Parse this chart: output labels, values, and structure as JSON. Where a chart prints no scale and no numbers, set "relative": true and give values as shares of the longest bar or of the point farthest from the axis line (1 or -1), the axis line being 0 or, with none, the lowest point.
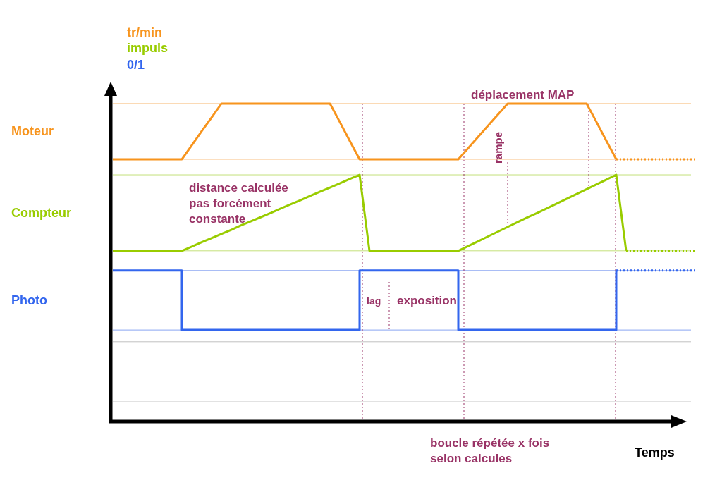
{
  "chart_data": {
    "type": "line",
    "relative": true,
    "xlabel": "Temps",
    "categories": [
      null,
      null,
      null,
      null,
      null,
      null,
      null,
      null,
      null,
      null,
      null,
      null,
      null,
      null,
      null,
      null,
      null,
      null,
      null,
      null,
      null,
      null,
      null,
      null,
      null,
      null,
      null,
      null,
      null,
      null,
      null,
      null,
      null,
      null,
      null,
      null,
      null,
      null,
      null,
      null,
      null,
      null,
      null,
      null,
      null,
      null,
      null,
      null,
      null,
      null,
      null,
      null,
      null,
      null,
      null,
      null,
      null,
      null,
      null,
      null
    ],
    "series": [
      {
        "name": "Moteur",
        "color": "#f7941d",
        "values": [
          0.825,
          0.825,
          0.825,
          0.825,
          0.825,
          0.825,
          0.825,
          0.825,
          0.869,
          0.913,
          0.956,
          1,
          1,
          1,
          1,
          1,
          1,
          1,
          1,
          1,
          1,
          1,
          1,
          0.942,
          0.883,
          0.825,
          0.825,
          0.825,
          0.825,
          0.825,
          0.825,
          0.825,
          0.825,
          0.825,
          0.825,
          0.825,
          0.86,
          0.895,
          0.93,
          0.965,
          1,
          1,
          1,
          1,
          1,
          1,
          1,
          1,
          1,
          0.942,
          0.883,
          0.825,
          null,
          null,
          null,
          null,
          null,
          null,
          null,
          null
        ]
      },
      {
        "color": "#f7941d",
        "line_style": "dotted",
        "values": [
          null,
          null,
          null,
          null,
          null,
          null,
          null,
          null,
          null,
          null,
          null,
          null,
          null,
          null,
          null,
          null,
          null,
          null,
          null,
          null,
          null,
          null,
          null,
          null,
          null,
          null,
          null,
          null,
          null,
          null,
          null,
          null,
          null,
          null,
          null,
          null,
          null,
          null,
          null,
          null,
          null,
          null,
          null,
          null,
          null,
          null,
          null,
          null,
          null,
          null,
          null,
          0.825,
          0.825,
          0.825,
          0.825,
          0.825,
          0.825,
          0.825,
          0.825,
          0.825
        ]
      },
      {
        "name": "Compteur",
        "color": "#99cc00",
        "values": [
          0.537,
          0.537,
          0.537,
          0.537,
          0.537,
          0.537,
          0.537,
          0.537,
          0.55,
          0.564,
          0.577,
          0.59,
          0.603,
          0.617,
          0.63,
          0.643,
          0.656,
          0.67,
          0.683,
          0.696,
          0.71,
          0.723,
          0.736,
          0.749,
          0.763,
          0.776,
          0.537,
          0.537,
          0.537,
          0.537,
          0.537,
          0.537,
          0.537,
          0.537,
          0.537,
          0.537,
          0.552,
          0.567,
          0.582,
          0.597,
          0.612,
          0.627,
          0.642,
          0.656,
          0.671,
          0.686,
          0.701,
          0.716,
          0.731,
          0.746,
          0.761,
          0.776,
          0.537,
          null,
          null,
          null,
          null,
          null,
          null,
          null
        ]
      },
      {
        "color": "#99cc00",
        "line_style": "dotted",
        "values": [
          null,
          null,
          null,
          null,
          null,
          null,
          null,
          null,
          null,
          null,
          null,
          null,
          null,
          null,
          null,
          null,
          null,
          null,
          null,
          null,
          null,
          null,
          null,
          null,
          null,
          null,
          null,
          null,
          null,
          null,
          null,
          null,
          null,
          null,
          null,
          null,
          null,
          null,
          null,
          null,
          null,
          null,
          null,
          null,
          null,
          null,
          null,
          null,
          null,
          null,
          null,
          null,
          0.537,
          0.537,
          0.537,
          0.537,
          0.537,
          0.537,
          0.537,
          0.537
        ]
      },
      {
        "name": "Photo",
        "type": "step",
        "color": "#3366ee",
        "values": [
          0.475,
          0.475,
          0.475,
          0.475,
          0.475,
          0.475,
          0.475,
          0.288,
          0.288,
          0.288,
          0.288,
          0.288,
          0.288,
          0.288,
          0.288,
          0.288,
          0.288,
          0.288,
          0.288,
          0.288,
          0.288,
          0.288,
          0.288,
          0.288,
          0.288,
          0.475,
          0.475,
          0.475,
          0.475,
          0.475,
          0.475,
          0.475,
          0.475,
          0.475,
          0.475,
          0.288,
          0.288,
          0.288,
          0.288,
          0.288,
          0.288,
          0.288,
          0.288,
          0.288,
          0.288,
          0.288,
          0.288,
          0.288,
          0.288,
          0.288,
          0.288,
          0.475,
          null,
          null,
          null,
          null,
          null,
          null,
          null,
          null
        ]
      },
      {
        "color": "#3366ee",
        "line_style": "dotted",
        "values": [
          null,
          null,
          null,
          null,
          null,
          null,
          null,
          null,
          null,
          null,
          null,
          null,
          null,
          null,
          null,
          null,
          null,
          null,
          null,
          null,
          null,
          null,
          null,
          null,
          null,
          null,
          null,
          null,
          null,
          null,
          null,
          null,
          null,
          null,
          null,
          null,
          null,
          null,
          null,
          null,
          null,
          null,
          null,
          null,
          null,
          null,
          null,
          null,
          null,
          null,
          null,
          0.475,
          0.475,
          0.475,
          0.475,
          0.475,
          0.475,
          0.475,
          0.475,
          0.475
        ]
      }
    ],
    "ref_lines": [
      {
        "axis": "y",
        "value": 1,
        "color": "#f7b46a"
      },
      {
        "axis": "y",
        "value": 0.825,
        "color": "#f7b46a"
      },
      {
        "axis": "y",
        "value": 0.776,
        "color": "#c4e07a"
      },
      {
        "axis": "y",
        "value": 0.537,
        "color": "#c4e07a"
      },
      {
        "axis": "y",
        "value": 0.475,
        "color": "#8aa6f2"
      },
      {
        "axis": "y",
        "value": 0.288,
        "color": "#8aa6f2"
      },
      {
        "axis": "y",
        "value": 0.251,
        "color": "#c0c0c0"
      },
      {
        "axis": "y",
        "value": 0.062,
        "color": "#c0c0c0"
      }
    ],
    "annotations": [
      "tr/min",
      "impuls",
      "0/1",
      "déplacement MAP",
      "rampe",
      "distance calculée\npas forcément\nconstante",
      "lag",
      "exposition",
      "boucle répétée x fois\nselon calcules"
    ]
  }
}
